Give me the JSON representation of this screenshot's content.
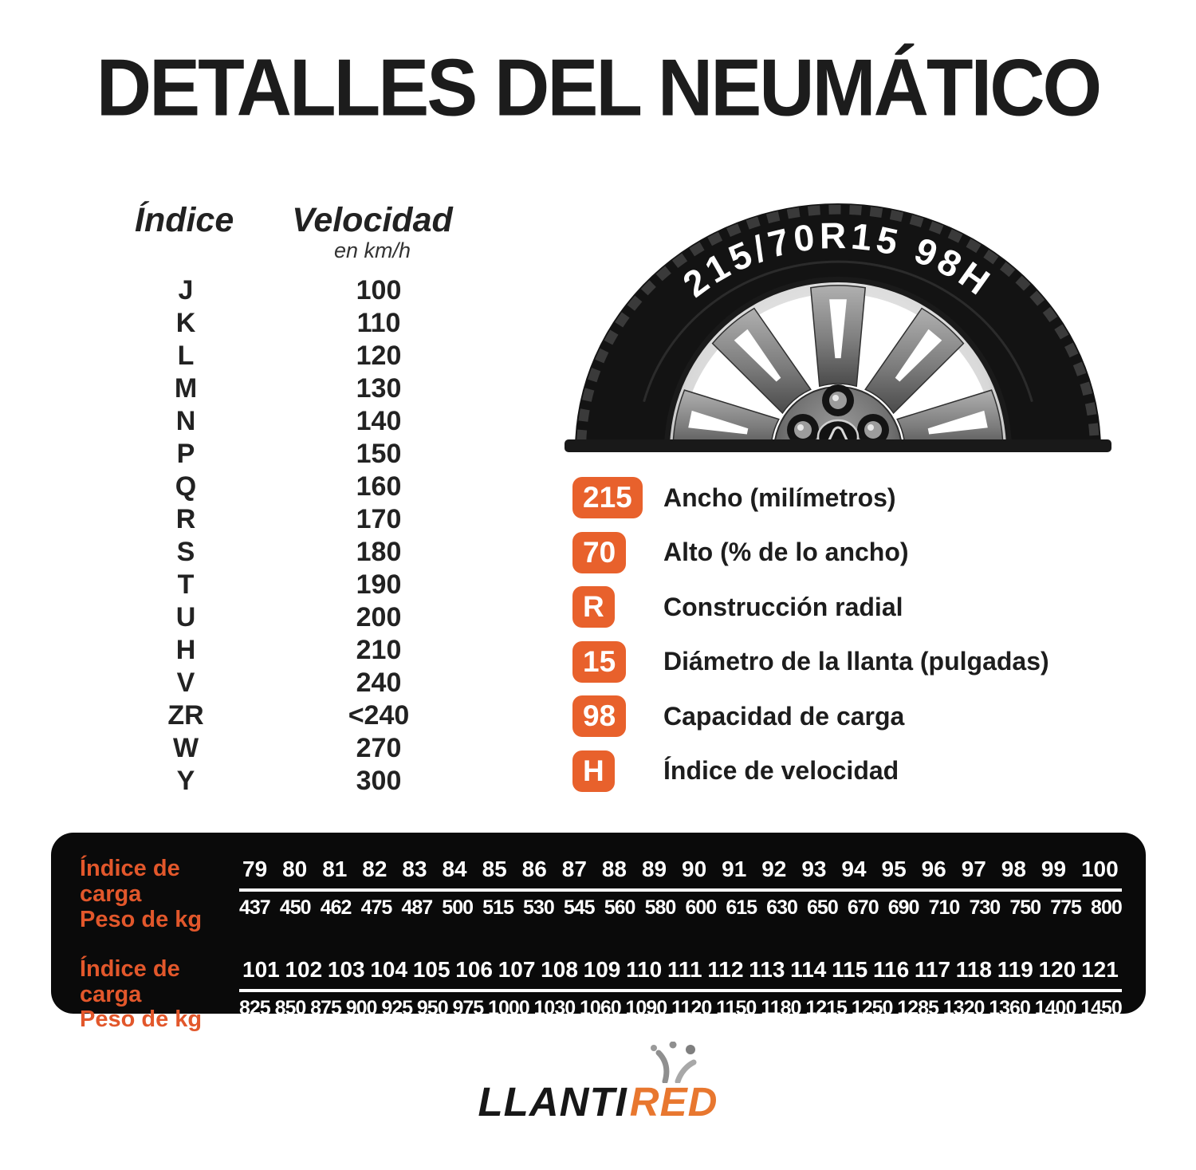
{
  "title": "DETALLES DEL NEUMÁTICO",
  "speed_table": {
    "col1_header": "Índice",
    "col2_header": "Velocidad",
    "col2_subheader": "en km/h",
    "rows": [
      {
        "letter": "J",
        "speed": "100"
      },
      {
        "letter": "K",
        "speed": "110"
      },
      {
        "letter": "L",
        "speed": "120"
      },
      {
        "letter": "M",
        "speed": "130"
      },
      {
        "letter": "N",
        "speed": "140"
      },
      {
        "letter": "P",
        "speed": "150"
      },
      {
        "letter": "Q",
        "speed": "160"
      },
      {
        "letter": "R",
        "speed": "170"
      },
      {
        "letter": "S",
        "speed": "180"
      },
      {
        "letter": "T",
        "speed": "190"
      },
      {
        "letter": "U",
        "speed": "200"
      },
      {
        "letter": "H",
        "speed": "210"
      },
      {
        "letter": "V",
        "speed": "240"
      },
      {
        "letter": "ZR",
        "speed": "<240"
      },
      {
        "letter": "W",
        "speed": "270"
      },
      {
        "letter": "Y",
        "speed": "300"
      }
    ]
  },
  "tire": {
    "sidewall_text": "215/70R15 98H"
  },
  "badges": [
    {
      "code": "215",
      "label": "Ancho (milímetros)"
    },
    {
      "code": "70",
      "label": "Alto (% de lo ancho)"
    },
    {
      "code": "R",
      "label": "Construcción radial"
    },
    {
      "code": "15",
      "label": "Diámetro de la llanta (pulgadas)"
    },
    {
      "code": "98",
      "label": "Capacidad de carga"
    },
    {
      "code": "H",
      "label": "Índice de velocidad"
    }
  ],
  "load_table": {
    "row_label_index": "Índice de carga",
    "row_label_weight": "Peso de kg",
    "groups": [
      {
        "indices": [
          79,
          80,
          81,
          82,
          83,
          84,
          85,
          86,
          87,
          88,
          89,
          90,
          91,
          92,
          93,
          94,
          95,
          96,
          97,
          98,
          99,
          100
        ],
        "weights": [
          437,
          450,
          462,
          475,
          487,
          500,
          515,
          530,
          545,
          560,
          580,
          600,
          615,
          630,
          650,
          670,
          690,
          710,
          730,
          750,
          775,
          800
        ]
      },
      {
        "indices": [
          101,
          102,
          103,
          104,
          105,
          106,
          107,
          108,
          109,
          110,
          111,
          112,
          113,
          114,
          115,
          116,
          117,
          118,
          119,
          120,
          121
        ],
        "weights": [
          825,
          850,
          875,
          900,
          925,
          950,
          975,
          1000,
          1030,
          1060,
          1090,
          1120,
          1150,
          1180,
          1215,
          1250,
          1285,
          1320,
          1360,
          1400,
          1450
        ]
      }
    ]
  },
  "logo": {
    "part1": "LLANTI",
    "part2": "RED"
  },
  "colors": {
    "accent": "#E8612C",
    "accent_dark": "#E2572B",
    "panel_bg": "#0A0A0A",
    "logo_orange": "#E8772F"
  }
}
